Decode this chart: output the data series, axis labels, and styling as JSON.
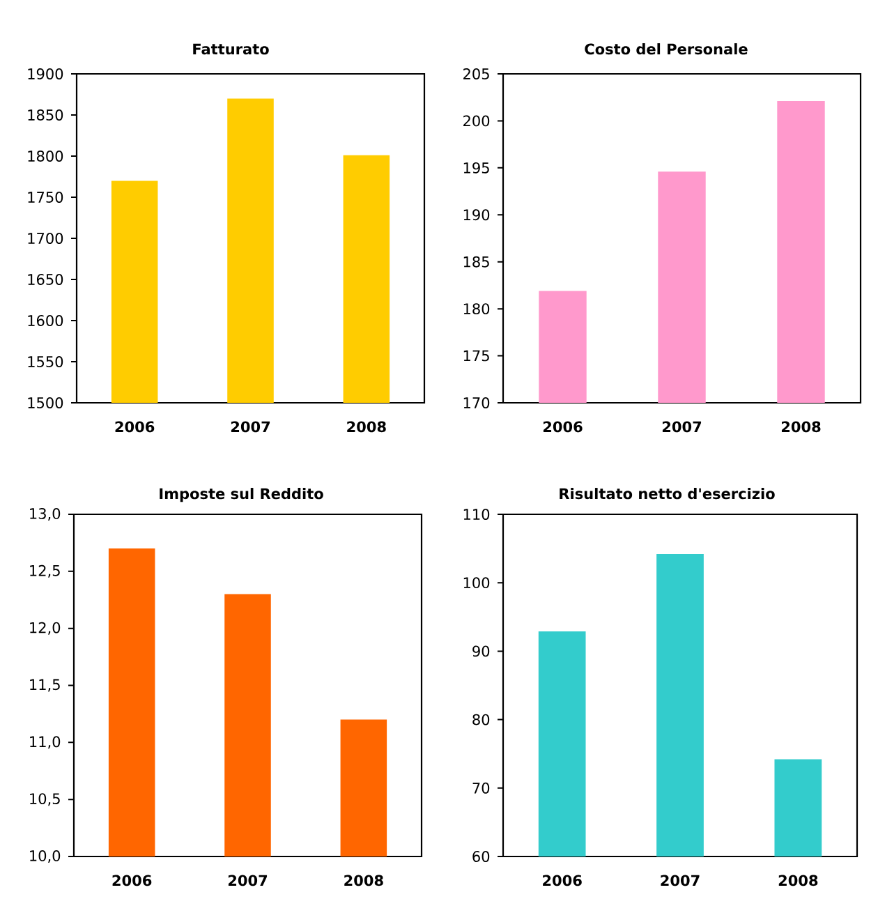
{
  "chart_data": [
    {
      "type": "bar",
      "title": "Fatturato",
      "categories": [
        "2006",
        "2007",
        "2008"
      ],
      "values": [
        1770,
        1870,
        1801
      ],
      "color": "#ffcc00",
      "ylim": [
        1500,
        1900
      ],
      "yticks": [
        1500,
        1550,
        1600,
        1650,
        1700,
        1750,
        1800,
        1850,
        1900
      ]
    },
    {
      "type": "bar",
      "title": "Costo del Personale",
      "categories": [
        "2006",
        "2007",
        "2008"
      ],
      "values": [
        181.9,
        194.6,
        202.1
      ],
      "color": "#ff99cc",
      "ylim": [
        170,
        205
      ],
      "yticks": [
        170,
        175,
        180,
        185,
        190,
        195,
        200,
        205
      ]
    },
    {
      "type": "bar",
      "title": "Imposte sul Reddito",
      "categories": [
        "2006",
        "2007",
        "2008"
      ],
      "values": [
        12.7,
        12.3,
        11.2
      ],
      "color": "#ff6600",
      "ylim": [
        10,
        13
      ],
      "yticks": [
        {
          "value": 10,
          "label": "10,0"
        },
        {
          "value": 10.5,
          "label": "10,5"
        },
        {
          "value": 11,
          "label": "11,0"
        },
        {
          "value": 11.5,
          "label": "11,5"
        },
        {
          "value": 12,
          "label": "12,0"
        },
        {
          "value": 12.5,
          "label": "12,5"
        },
        {
          "value": 13,
          "label": "13,0"
        }
      ]
    },
    {
      "type": "bar",
      "title": "Risultato netto d'esercizio",
      "categories": [
        "2006",
        "2007",
        "2008"
      ],
      "values": [
        92.9,
        104.2,
        74.2
      ],
      "color": "#33cccc",
      "ylim": [
        60,
        110
      ],
      "yticks": [
        60,
        70,
        80,
        90,
        100,
        110
      ]
    }
  ]
}
